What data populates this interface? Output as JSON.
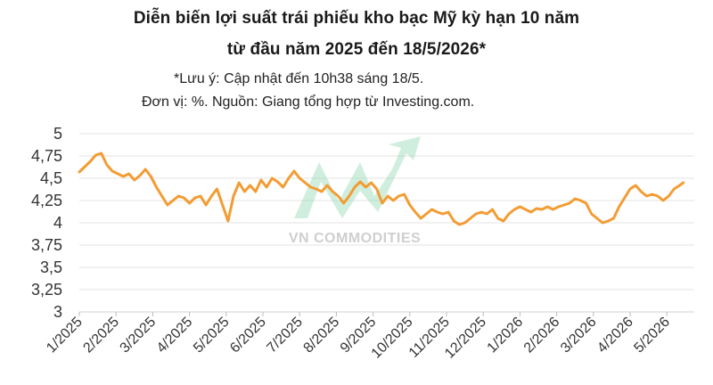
{
  "header": {
    "title_line1": "Diễn biến lợi suất trái phiếu kho bạc Mỹ kỳ hạn 10 năm",
    "title_line2": "từ đầu năm 2025 đến 18/5/2026*",
    "note1": "*Lưu ý: Cập nhật đến 10h38 sáng 18/5.",
    "note2": "Đơn vị: %. Nguồn: Giang tổng hợp từ Investing.com."
  },
  "watermark": {
    "text": "VN COMMODITIES"
  },
  "colors": {
    "line": "#f39c33",
    "grid": "#e3e3e3",
    "watermark_green": "#8fd6b0"
  },
  "chart_data": {
    "type": "line",
    "title": "Diễn biến lợi suất trái phiếu kho bạc Mỹ kỳ hạn 10 năm từ đầu năm 2025 đến 18/5/2026*",
    "xlabel": "",
    "ylabel": "",
    "ylim": [
      3,
      5
    ],
    "y_ticks": [
      "3",
      "3,25",
      "3,5",
      "3,75",
      "4",
      "4,25",
      "4,5",
      "4,75",
      "5"
    ],
    "x_tick_labels": [
      "1/2025",
      "2/2025",
      "3/2025",
      "4/2025",
      "5/2025",
      "6/2025",
      "7/2025",
      "8/2025",
      "9/2025",
      "10/2025",
      "11/2025",
      "12/2025",
      "1/2026",
      "2/2026",
      "3/2026",
      "4/2026",
      "5/2026"
    ],
    "grid": "horizontal",
    "x_month_index": [
      0,
      0.15,
      0.3,
      0.45,
      0.6,
      0.75,
      0.9,
      1.05,
      1.2,
      1.35,
      1.5,
      1.65,
      1.8,
      1.95,
      2.1,
      2.25,
      2.4,
      2.55,
      2.7,
      2.85,
      3.0,
      3.15,
      3.3,
      3.45,
      3.6,
      3.75,
      3.9,
      4.05,
      4.2,
      4.35,
      4.5,
      4.65,
      4.8,
      4.95,
      5.1,
      5.25,
      5.4,
      5.55,
      5.7,
      5.85,
      6.0,
      6.15,
      6.3,
      6.45,
      6.6,
      6.75,
      6.9,
      7.05,
      7.2,
      7.35,
      7.5,
      7.65,
      7.8,
      7.95,
      8.1,
      8.25,
      8.4,
      8.55,
      8.7,
      8.85,
      9.0,
      9.15,
      9.3,
      9.45,
      9.6,
      9.75,
      9.9,
      10.05,
      10.2,
      10.35,
      10.5,
      10.65,
      10.8,
      10.95,
      11.1,
      11.25,
      11.4,
      11.55,
      11.7,
      11.85,
      12.0,
      12.15,
      12.3,
      12.45,
      12.6,
      12.75,
      12.9,
      13.05,
      13.2,
      13.35,
      13.5,
      13.65,
      13.8,
      13.95,
      14.1,
      14.25,
      14.4,
      14.55,
      14.7,
      14.85,
      15.0,
      15.15,
      15.3,
      15.45,
      15.6,
      15.75,
      15.9,
      16.05,
      16.2,
      16.35,
      16.45
    ],
    "series": [
      {
        "values": [
          4.57,
          4.63,
          4.69,
          4.76,
          4.78,
          4.65,
          4.58,
          4.55,
          4.52,
          4.55,
          4.48,
          4.53,
          4.6,
          4.52,
          4.4,
          4.3,
          4.2,
          4.25,
          4.3,
          4.28,
          4.22,
          4.28,
          4.3,
          4.2,
          4.3,
          4.38,
          4.2,
          4.02,
          4.3,
          4.45,
          4.35,
          4.42,
          4.35,
          4.48,
          4.4,
          4.5,
          4.46,
          4.4,
          4.5,
          4.58,
          4.5,
          4.45,
          4.4,
          4.38,
          4.35,
          4.42,
          4.35,
          4.3,
          4.22,
          4.3,
          4.4,
          4.46,
          4.4,
          4.45,
          4.38,
          4.22,
          4.3,
          4.25,
          4.3,
          4.32,
          4.2,
          4.12,
          4.05,
          4.1,
          4.15,
          4.12,
          4.1,
          4.12,
          4.02,
          3.98,
          4.0,
          4.05,
          4.1,
          4.12,
          4.1,
          4.15,
          4.05,
          4.02,
          4.1,
          4.15,
          4.18,
          4.15,
          4.12,
          4.16,
          4.15,
          4.18,
          4.15,
          4.18,
          4.2,
          4.22,
          4.27,
          4.25,
          4.22,
          4.1,
          4.05,
          4.0,
          4.02,
          4.05,
          4.18,
          4.28,
          4.38,
          4.42,
          4.35,
          4.3,
          4.32,
          4.3,
          4.25,
          4.3,
          4.38,
          4.42,
          4.45
        ]
      }
    ]
  }
}
